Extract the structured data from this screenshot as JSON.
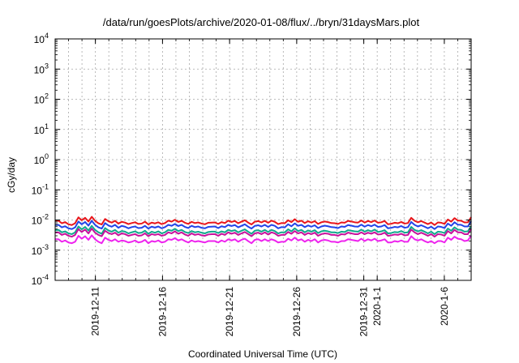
{
  "chart_data": {
    "type": "line",
    "title": "/data/run/goesPlots/archive/2020-01-08/flux/../bryn/31daysMars.plot",
    "xlabel": "Coordinated Universal Time (UTC)",
    "ylabel": "cGy/day",
    "yscale": "log",
    "ylim": [
      0.0001,
      10000
    ],
    "xlim": [
      "2019-12-08",
      "2020-01-08"
    ],
    "grid": true,
    "y_ticks": [
      {
        "base": "10",
        "exp": "-4"
      },
      {
        "base": "10",
        "exp": "-3"
      },
      {
        "base": "10",
        "exp": "-2"
      },
      {
        "base": "10",
        "exp": "-1"
      },
      {
        "base": "10",
        "exp": "0"
      },
      {
        "base": "10",
        "exp": "1"
      },
      {
        "base": "10",
        "exp": "2"
      },
      {
        "base": "10",
        "exp": "3"
      },
      {
        "base": "10",
        "exp": "4"
      }
    ],
    "x_ticks": [
      {
        "date": "2019-12-11",
        "label": "2019-12-11"
      },
      {
        "date": "2019-12-16",
        "label": "2019-12-16"
      },
      {
        "date": "2019-12-21",
        "label": "2019-12-21"
      },
      {
        "date": "2019-12-26",
        "label": "2019-12-26"
      },
      {
        "date": "2019-12-31",
        "label": "2019-12-31"
      },
      {
        "date": "2020-01-01",
        "label": "2020-1-1"
      },
      {
        "date": "2020-01-06",
        "label": "2020-1-6"
      }
    ],
    "series": [
      {
        "color": "#e8161b",
        "values": [
          0.0093,
          0.0095,
          0.0078,
          0.0085,
          0.0072,
          0.0068,
          0.0078,
          0.0122,
          0.0098,
          0.0118,
          0.0089,
          0.0128,
          0.0094,
          0.0078,
          0.0071,
          0.0108,
          0.0091,
          0.0082,
          0.0094,
          0.0076,
          0.0087,
          0.0082,
          0.0073,
          0.0079,
          0.0084,
          0.0074,
          0.0076,
          0.0088,
          0.0071,
          0.0082,
          0.0077,
          0.0084,
          0.0073,
          0.0079,
          0.0095,
          0.0088,
          0.0102,
          0.0086,
          0.0094,
          0.0081,
          0.0074,
          0.0087,
          0.0079,
          0.0083,
          0.0076,
          0.0072,
          0.0081,
          0.0082,
          0.0083,
          0.0074,
          0.0085,
          0.0079,
          0.0095,
          0.0086,
          0.0093,
          0.0078,
          0.0088,
          0.0098,
          0.0082,
          0.0071,
          0.0088,
          0.0092,
          0.0083,
          0.0094,
          0.0081,
          0.0095,
          0.0087,
          0.0073,
          0.0079,
          0.0078,
          0.0098,
          0.0085,
          0.0106,
          0.0087,
          0.0095,
          0.0079,
          0.0091,
          0.0082,
          0.0092,
          0.0074,
          0.0084,
          0.0089,
          0.0085,
          0.0079,
          0.0078,
          0.0074,
          0.0083,
          0.0081,
          0.0093,
          0.0089,
          0.0084,
          0.0082,
          0.0096,
          0.0082,
          0.0093,
          0.0085,
          0.0096,
          0.0081,
          0.0084,
          0.0093,
          0.0072,
          0.0075,
          0.0081,
          0.0078,
          0.0086,
          0.0076,
          0.0079,
          0.0118,
          0.0094,
          0.0084,
          0.0092,
          0.0082,
          0.0073,
          0.0082,
          0.0068,
          0.0083,
          0.0081,
          0.0074,
          0.0104,
          0.0088,
          0.0115,
          0.0096,
          0.0094,
          0.0083,
          0.0084,
          0.0124
        ]
      },
      {
        "color": "#2244e8",
        "values": [
          0.0068,
          0.0069,
          0.0057,
          0.0062,
          0.0053,
          0.005,
          0.0057,
          0.0089,
          0.0072,
          0.0086,
          0.0065,
          0.0094,
          0.0069,
          0.0057,
          0.0052,
          0.0079,
          0.0066,
          0.006,
          0.0069,
          0.0055,
          0.0064,
          0.006,
          0.0053,
          0.0058,
          0.0061,
          0.0054,
          0.0055,
          0.0064,
          0.0052,
          0.006,
          0.0056,
          0.0061,
          0.0053,
          0.0058,
          0.0069,
          0.0064,
          0.0074,
          0.0063,
          0.0069,
          0.0059,
          0.0054,
          0.0064,
          0.0058,
          0.0061,
          0.0055,
          0.0053,
          0.0059,
          0.006,
          0.0061,
          0.0054,
          0.0062,
          0.0058,
          0.0069,
          0.0063,
          0.0068,
          0.0057,
          0.0064,
          0.0072,
          0.006,
          0.0052,
          0.0064,
          0.0067,
          0.0061,
          0.0069,
          0.0059,
          0.0069,
          0.0064,
          0.0053,
          0.0058,
          0.0057,
          0.0072,
          0.0062,
          0.0077,
          0.0064,
          0.0069,
          0.0058,
          0.0066,
          0.006,
          0.0067,
          0.0054,
          0.0061,
          0.0065,
          0.0062,
          0.0058,
          0.0057,
          0.0054,
          0.0061,
          0.0059,
          0.0068,
          0.0065,
          0.0061,
          0.006,
          0.007,
          0.006,
          0.0068,
          0.0062,
          0.007,
          0.0059,
          0.0061,
          0.0068,
          0.0053,
          0.0055,
          0.0059,
          0.0057,
          0.0063,
          0.0055,
          0.0058,
          0.0086,
          0.0069,
          0.0061,
          0.0067,
          0.006,
          0.0053,
          0.006,
          0.005,
          0.0061,
          0.0059,
          0.0054,
          0.0076,
          0.0064,
          0.0084,
          0.007,
          0.0069,
          0.0061,
          0.0061,
          0.0091
        ]
      },
      {
        "color": "#11a88c",
        "values": [
          0.0046,
          0.0047,
          0.0039,
          0.0042,
          0.0036,
          0.0034,
          0.0039,
          0.0061,
          0.0049,
          0.0059,
          0.0045,
          0.0064,
          0.0047,
          0.0039,
          0.0035,
          0.0054,
          0.0045,
          0.0041,
          0.0047,
          0.0038,
          0.0043,
          0.0041,
          0.0036,
          0.0039,
          0.0042,
          0.0037,
          0.0038,
          0.0044,
          0.0035,
          0.0041,
          0.0038,
          0.0042,
          0.0036,
          0.0039,
          0.0047,
          0.0044,
          0.0051,
          0.0043,
          0.0047,
          0.004,
          0.0037,
          0.0043,
          0.0039,
          0.0041,
          0.0038,
          0.0036,
          0.004,
          0.0041,
          0.0041,
          0.0037,
          0.0042,
          0.0039,
          0.0047,
          0.0043,
          0.0046,
          0.0039,
          0.0044,
          0.0049,
          0.0041,
          0.0035,
          0.0044,
          0.0046,
          0.0041,
          0.0047,
          0.004,
          0.0047,
          0.0043,
          0.0036,
          0.0039,
          0.0039,
          0.0049,
          0.0042,
          0.0053,
          0.0043,
          0.0047,
          0.0039,
          0.0045,
          0.0041,
          0.0046,
          0.0037,
          0.0042,
          0.0044,
          0.0042,
          0.0039,
          0.0039,
          0.0037,
          0.0041,
          0.004,
          0.0046,
          0.0044,
          0.0042,
          0.0041,
          0.0048,
          0.0041,
          0.0046,
          0.0042,
          0.0048,
          0.004,
          0.0042,
          0.0046,
          0.0036,
          0.0037,
          0.004,
          0.0039,
          0.0043,
          0.0038,
          0.0039,
          0.0059,
          0.0047,
          0.0042,
          0.0046,
          0.0041,
          0.0036,
          0.0041,
          0.0034,
          0.0041,
          0.004,
          0.0037,
          0.0052,
          0.0044,
          0.0057,
          0.0048,
          0.0047,
          0.0041,
          0.0042,
          0.0062
        ]
      },
      {
        "color": "#c8109c",
        "values": [
          0.0038,
          0.0039,
          0.0032,
          0.0035,
          0.003,
          0.0028,
          0.0032,
          0.005,
          0.004,
          0.0048,
          0.0036,
          0.0052,
          0.0038,
          0.0032,
          0.0029,
          0.0044,
          0.0037,
          0.0034,
          0.0038,
          0.0031,
          0.0036,
          0.0034,
          0.003,
          0.0032,
          0.0034,
          0.003,
          0.0031,
          0.0036,
          0.0029,
          0.0034,
          0.0032,
          0.0034,
          0.003,
          0.0032,
          0.0039,
          0.0036,
          0.0042,
          0.0035,
          0.0039,
          0.0033,
          0.003,
          0.0036,
          0.0032,
          0.0034,
          0.0031,
          0.003,
          0.0033,
          0.0034,
          0.0034,
          0.003,
          0.0035,
          0.0032,
          0.0039,
          0.0035,
          0.0038,
          0.0032,
          0.0036,
          0.004,
          0.0034,
          0.0029,
          0.0036,
          0.0038,
          0.0034,
          0.0039,
          0.0033,
          0.0039,
          0.0036,
          0.003,
          0.0032,
          0.0032,
          0.004,
          0.0035,
          0.0043,
          0.0036,
          0.0039,
          0.0032,
          0.0037,
          0.0034,
          0.0038,
          0.003,
          0.0034,
          0.0036,
          0.0035,
          0.0032,
          0.0032,
          0.003,
          0.0034,
          0.0033,
          0.0038,
          0.0036,
          0.0034,
          0.0034,
          0.0039,
          0.0034,
          0.0038,
          0.0035,
          0.0039,
          0.0033,
          0.0034,
          0.0038,
          0.003,
          0.0031,
          0.0033,
          0.0032,
          0.0035,
          0.0031,
          0.0032,
          0.0048,
          0.0039,
          0.0034,
          0.0038,
          0.0034,
          0.003,
          0.0034,
          0.0028,
          0.0034,
          0.0033,
          0.003,
          0.0043,
          0.0036,
          0.0047,
          0.0039,
          0.0039,
          0.0034,
          0.0034,
          0.0051
        ]
      },
      {
        "color": "#ee22ee",
        "values": [
          0.0023,
          0.0023,
          0.0019,
          0.0021,
          0.0018,
          0.0017,
          0.0019,
          0.003,
          0.0024,
          0.0029,
          0.0022,
          0.0031,
          0.0023,
          0.0019,
          0.0017,
          0.0026,
          0.0022,
          0.002,
          0.0023,
          0.0019,
          0.0021,
          0.002,
          0.0018,
          0.0019,
          0.0021,
          0.0018,
          0.0019,
          0.0022,
          0.0017,
          0.002,
          0.0019,
          0.0021,
          0.0018,
          0.0019,
          0.0023,
          0.0022,
          0.0025,
          0.0021,
          0.0023,
          0.002,
          0.0018,
          0.0021,
          0.0019,
          0.002,
          0.0019,
          0.0018,
          0.002,
          0.002,
          0.002,
          0.0018,
          0.0021,
          0.0019,
          0.0023,
          0.0021,
          0.0023,
          0.0019,
          0.0022,
          0.0024,
          0.002,
          0.0017,
          0.0022,
          0.0023,
          0.002,
          0.0023,
          0.002,
          0.0023,
          0.0021,
          0.0018,
          0.0019,
          0.0019,
          0.0024,
          0.0021,
          0.0026,
          0.0021,
          0.0023,
          0.0019,
          0.0022,
          0.002,
          0.0023,
          0.0018,
          0.0021,
          0.0022,
          0.0021,
          0.0019,
          0.0019,
          0.0018,
          0.002,
          0.002,
          0.0023,
          0.0022,
          0.0021,
          0.002,
          0.0024,
          0.002,
          0.0023,
          0.0021,
          0.0024,
          0.002,
          0.0021,
          0.0023,
          0.0018,
          0.0018,
          0.002,
          0.0019,
          0.0021,
          0.0019,
          0.0019,
          0.0029,
          0.0023,
          0.0021,
          0.0023,
          0.002,
          0.0018,
          0.002,
          0.0017,
          0.002,
          0.002,
          0.0018,
          0.0026,
          0.0022,
          0.0028,
          0.0024,
          0.0023,
          0.002,
          0.0021,
          0.003
        ]
      }
    ]
  }
}
